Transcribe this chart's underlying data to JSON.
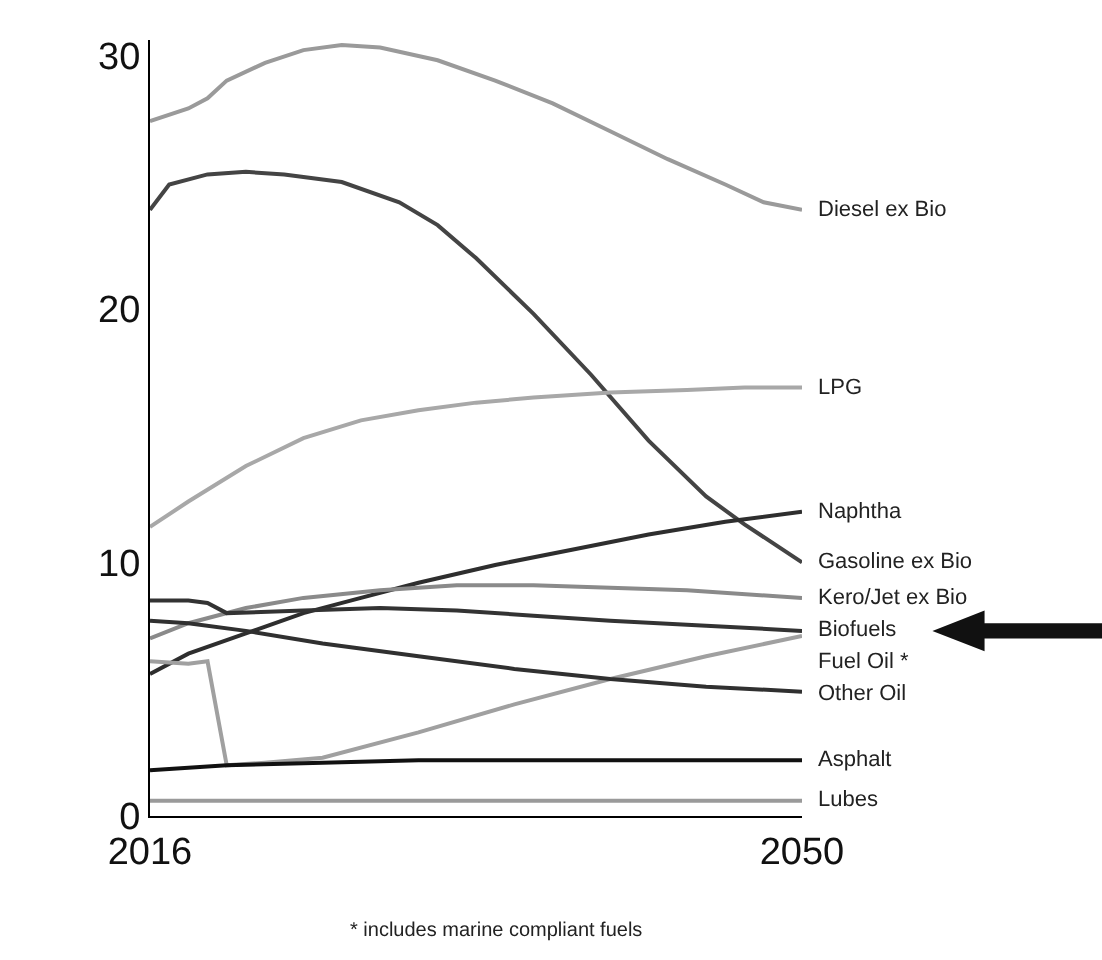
{
  "chart_data": {
    "type": "line",
    "xlim": [
      2016,
      2050
    ],
    "ylim": [
      0,
      30.6
    ],
    "xticks": [
      2016,
      2050
    ],
    "yticks": [
      0,
      10,
      20,
      30
    ],
    "legend": false,
    "marker": "none",
    "line_style": "solid",
    "annotations": [
      "* includes marine compliant fuels"
    ],
    "series": [
      {
        "name": "Diesel ex Bio",
        "color": "#9a9a9a",
        "x": [
          2016,
          2018,
          2019,
          2020,
          2022,
          2024,
          2026,
          2028,
          2031,
          2034,
          2037,
          2040,
          2043,
          2046,
          2048,
          2050
        ],
        "values": [
          27.4,
          27.9,
          28.3,
          29.0,
          29.7,
          30.2,
          30.4,
          30.3,
          29.8,
          29.0,
          28.1,
          27.0,
          25.9,
          24.9,
          24.2,
          23.9
        ]
      },
      {
        "name": "Gasoline ex Bio",
        "color": "#444444",
        "x": [
          2016,
          2017,
          2019,
          2021,
          2023,
          2026,
          2029,
          2031,
          2033,
          2036,
          2039,
          2042,
          2045,
          2047,
          2050
        ],
        "values": [
          23.9,
          24.9,
          25.3,
          25.4,
          25.3,
          25.0,
          24.2,
          23.3,
          22.0,
          19.8,
          17.4,
          14.8,
          12.6,
          11.5,
          10.0
        ]
      },
      {
        "name": "LPG",
        "color": "#a8a8a8",
        "x": [
          2016,
          2018,
          2021,
          2024,
          2027,
          2030,
          2033,
          2036,
          2040,
          2044,
          2047,
          2050
        ],
        "values": [
          11.4,
          12.4,
          13.8,
          14.9,
          15.6,
          16.0,
          16.3,
          16.5,
          16.7,
          16.8,
          16.9,
          16.9
        ]
      },
      {
        "name": "Naphtha",
        "color": "#2e2e2e",
        "x": [
          2016,
          2018,
          2021,
          2024,
          2027,
          2030,
          2034,
          2038,
          2042,
          2046,
          2050
        ],
        "values": [
          5.6,
          6.4,
          7.2,
          8.0,
          8.6,
          9.2,
          9.9,
          10.5,
          11.1,
          11.6,
          12.0
        ]
      },
      {
        "name": "Kero/Jet ex Bio",
        "color": "#8a8a8a",
        "x": [
          2016,
          2018,
          2021,
          2024,
          2028,
          2032,
          2036,
          2040,
          2044,
          2050
        ],
        "values": [
          7.0,
          7.6,
          8.2,
          8.6,
          8.9,
          9.1,
          9.1,
          9.0,
          8.9,
          8.6
        ]
      },
      {
        "name": "Biofuels",
        "color": "#333333",
        "x": [
          2016,
          2018,
          2019,
          2020,
          2024,
          2028,
          2032,
          2036,
          2040,
          2045,
          2050
        ],
        "values": [
          8.5,
          8.5,
          8.4,
          8.0,
          8.1,
          8.2,
          8.1,
          7.9,
          7.7,
          7.5,
          7.3
        ]
      },
      {
        "name": "Fuel Oil *",
        "color": "#a0a0a0",
        "x": [
          2016,
          2018,
          2019,
          2020,
          2022,
          2025,
          2030,
          2035,
          2040,
          2045,
          2050
        ],
        "values": [
          6.1,
          6.0,
          6.1,
          2.0,
          2.1,
          2.3,
          3.3,
          4.4,
          5.4,
          6.3,
          7.1
        ]
      },
      {
        "name": "Other Oil",
        "color": "#303030",
        "x": [
          2016,
          2018,
          2021,
          2025,
          2030,
          2035,
          2040,
          2045,
          2050
        ],
        "values": [
          7.7,
          7.6,
          7.3,
          6.8,
          6.3,
          5.8,
          5.4,
          5.1,
          4.9
        ]
      },
      {
        "name": "Asphalt",
        "color": "#111111",
        "x": [
          2016,
          2020,
          2025,
          2030,
          2035,
          2040,
          2045,
          2050
        ],
        "values": [
          1.8,
          2.0,
          2.1,
          2.2,
          2.2,
          2.2,
          2.2,
          2.2
        ]
      },
      {
        "name": "Lubes",
        "color": "#9a9a9a",
        "x": [
          2016,
          2025,
          2035,
          2050
        ],
        "values": [
          0.6,
          0.6,
          0.6,
          0.6
        ]
      }
    ]
  }
}
